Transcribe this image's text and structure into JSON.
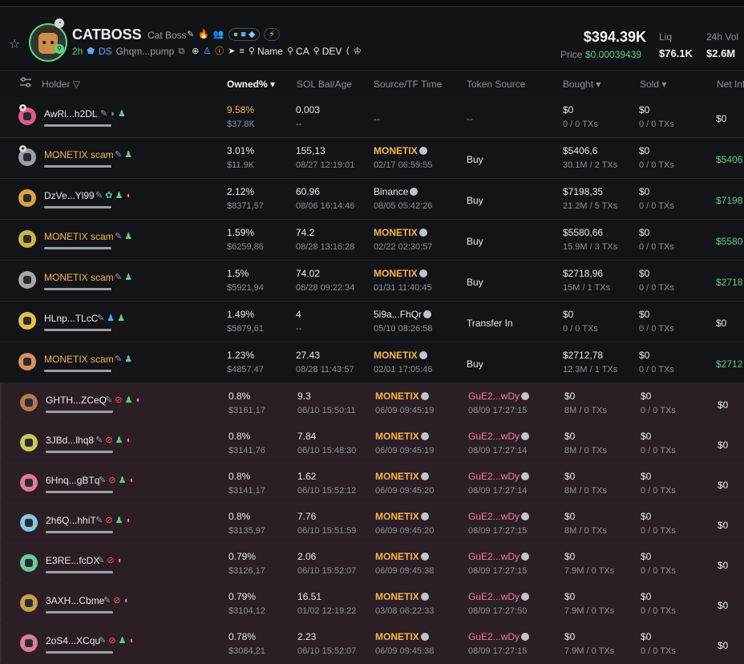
{
  "token": {
    "ticker": "CATBOSS",
    "name": "Cat Boss",
    "age": "2h",
    "ds_label": "DS",
    "address": "Ghqm...pump",
    "links": [
      "Name",
      "CA",
      "DEV"
    ],
    "market_cap": "$394.39K",
    "price_label": "Price",
    "price": "$0.00039439",
    "liq_label": "Liq",
    "liq": "$76.1K",
    "vol_label": "24h Vol",
    "vol": "$2.6M"
  },
  "table": {
    "headers": {
      "holder": "Holder",
      "owned": "Owned% ▾",
      "sol": "SOL Bal/Age",
      "source": "Source/TF Time",
      "token_source": "Token Source",
      "bought": "Bought ▾",
      "sold": "Sold ▾",
      "net": "Net Inf"
    },
    "rows": [
      {
        "name": "AwRi...h2DL",
        "owned": "9.58%",
        "owned_usd": "$37.8K",
        "sol": "0.003",
        "sol_age": "--",
        "src": "--",
        "src_time": "",
        "tsrc": "--",
        "bought": "$0",
        "bought_sub": "0 / 0 TXs",
        "sold": "$0",
        "sold_sub": "0 / 0 TXs",
        "net": "$0"
      },
      {
        "name": "MONETIX scam",
        "owned": "3.01%",
        "owned_usd": "$11.9K",
        "sol": "155,13",
        "sol_age": "08/27 12:19:01",
        "src": "MONETIX",
        "src_time": "02/17 06:59:55",
        "tsrc": "Buy",
        "bought": "$5406,6",
        "bought_sub": "30.1M / 2 TXs",
        "sold": "$0",
        "sold_sub": "0 / 0 TXs",
        "net": "$5406"
      },
      {
        "name": "DzVe...Yl99",
        "owned": "2.12%",
        "owned_usd": "$8371,57",
        "sol": "60.96",
        "sol_age": "08/06 16:14:46",
        "src": "Binance",
        "src_time": "08/05 05:42:26",
        "tsrc": "Buy",
        "bought": "$7198,35",
        "bought_sub": "21.2M / 5 TXs",
        "sold": "$0",
        "sold_sub": "0 / 0 TXs",
        "net": "$7198"
      },
      {
        "name": "MONETIX scam",
        "owned": "1.59%",
        "owned_usd": "$6259,86",
        "sol": "74.2",
        "sol_age": "08/28 13:16:28",
        "src": "MONETIX",
        "src_time": "02/22 02:30:57",
        "tsrc": "Buy",
        "bought": "$5580,66",
        "bought_sub": "15.9M / 3 TXs",
        "sold": "$0",
        "sold_sub": "0 / 0 TXs",
        "net": "$5580"
      },
      {
        "name": "MONETIX scam",
        "owned": "1.5%",
        "owned_usd": "$5921,94",
        "sol": "74.02",
        "sol_age": "08/28 09:22:34",
        "src": "MONETIX",
        "src_time": "01/31 11:40:45",
        "tsrc": "Buy",
        "bought": "$2718,96",
        "bought_sub": "15M / 1 TXs",
        "sold": "$0",
        "sold_sub": "0 / 0 TXs",
        "net": "$2718"
      },
      {
        "name": "HLnp...TLcC",
        "owned": "1.49%",
        "owned_usd": "$5879,61",
        "sol": "4",
        "sol_age": "--",
        "src": "5i9a...FhQr",
        "src_time": "05/10 08:26:58",
        "tsrc": "Transfer In",
        "bought": "$0",
        "bought_sub": "0 / 0 TXs",
        "sold": "$0",
        "sold_sub": "0 / 0 TXs",
        "net": "$0"
      },
      {
        "name": "MONETIX scam",
        "owned": "1.23%",
        "owned_usd": "$4857,47",
        "sol": "27.43",
        "sol_age": "08/28 11:43:57",
        "src": "MONETIX",
        "src_time": "02/01 17:05:46",
        "tsrc": "Buy",
        "bought": "$2712,78",
        "bought_sub": "12.3M / 1 TXs",
        "sold": "$0",
        "sold_sub": "0 / 0 TXs",
        "net": "$2712"
      },
      {
        "name": "GHTH...ZCeQ",
        "owned": "0.8%",
        "owned_usd": "$3161,17",
        "sol": "9.3",
        "sol_age": "06/10 15:50:11",
        "src": "MONETIX",
        "src_time": "06/09 09:45:19",
        "tsrc": "GuE2...wDy",
        "tsrc_time": "08/09 17:27:15",
        "bought": "$0",
        "bought_sub": "8M / 0 TXs",
        "sold": "$0",
        "sold_sub": "0 / 0 TXs",
        "net": "$0"
      },
      {
        "name": "3JBd...lhq8",
        "owned": "0.8%",
        "owned_usd": "$3141,76",
        "sol": "7.84",
        "sol_age": "06/10 15:48:30",
        "src": "MONETIX",
        "src_time": "06/09 09:45:19",
        "tsrc": "GuE2...wDy",
        "tsrc_time": "08/09 17:27:14",
        "bought": "$0",
        "bought_sub": "8M / 0 TXs",
        "sold": "$0",
        "sold_sub": "0 / 0 TXs",
        "net": "$0"
      },
      {
        "name": "6Hnq...gBTq",
        "owned": "0.8%",
        "owned_usd": "$3141,17",
        "sol": "1.62",
        "sol_age": "06/10 15:52:12",
        "src": "MONETIX",
        "src_time": "06/09 09:45:20",
        "tsrc": "GuE2...wDy",
        "tsrc_time": "08/09 17:27:14",
        "bought": "$0",
        "bought_sub": "8M / 0 TXs",
        "sold": "$0",
        "sold_sub": "0 / 0 TXs",
        "net": "$0"
      },
      {
        "name": "2h6Q...hhiT",
        "owned": "0.8%",
        "owned_usd": "$3135,97",
        "sol": "7.76",
        "sol_age": "06/10 15:51:59",
        "src": "MONETIX",
        "src_time": "06/09 09:45:20",
        "tsrc": "GuE2...wDy",
        "tsrc_time": "08/09 17:27:15",
        "bought": "$0",
        "bought_sub": "8M / 0 TXs",
        "sold": "$0",
        "sold_sub": "0 / 0 TXs",
        "net": "$0"
      },
      {
        "name": "E3RE...fcDX",
        "owned": "0.79%",
        "owned_usd": "$3126,17",
        "sol": "2.06",
        "sol_age": "06/10 15:52:07",
        "src": "MONETIX",
        "src_time": "06/09 09:45:38",
        "tsrc": "GuE2...wDy",
        "tsrc_time": "08/09 17:27:15",
        "bought": "$0",
        "bought_sub": "7.9M / 0 TXs",
        "sold": "$0",
        "sold_sub": "0 / 0 TXs",
        "net": "$0"
      },
      {
        "name": "3AXH...Cbme",
        "owned": "0.79%",
        "owned_usd": "$3104,12",
        "sol": "16.51",
        "sol_age": "01/02 12:19:22",
        "src": "MONETIX",
        "src_time": "03/08 06:22:33",
        "tsrc": "GuE2...wDy",
        "tsrc_time": "08/09 17:27:50",
        "bought": "$0",
        "bought_sub": "7.9M / 0 TXs",
        "sold": "$0",
        "sold_sub": "0 / 0 TXs",
        "net": "$0"
      },
      {
        "name": "2oS4...XCqu",
        "owned": "0.78%",
        "owned_usd": "$3084,21",
        "sol": "2.23",
        "sol_age": "06/10 15:52:07",
        "src": "MONETIX",
        "src_time": "06/09 09:45:38",
        "tsrc": "GuE2...wDy",
        "tsrc_time": "08/09 17:27:15",
        "bought": "$0",
        "bought_sub": "7.9M / 0 TXs",
        "sold": "$0",
        "sold_sub": "0 / 0 TXs",
        "net": "$0"
      }
    ]
  },
  "colors": {
    "accent_green": "#5fcf86",
    "scam_orange": "#f5b74a",
    "pink": "#f07aa8"
  }
}
